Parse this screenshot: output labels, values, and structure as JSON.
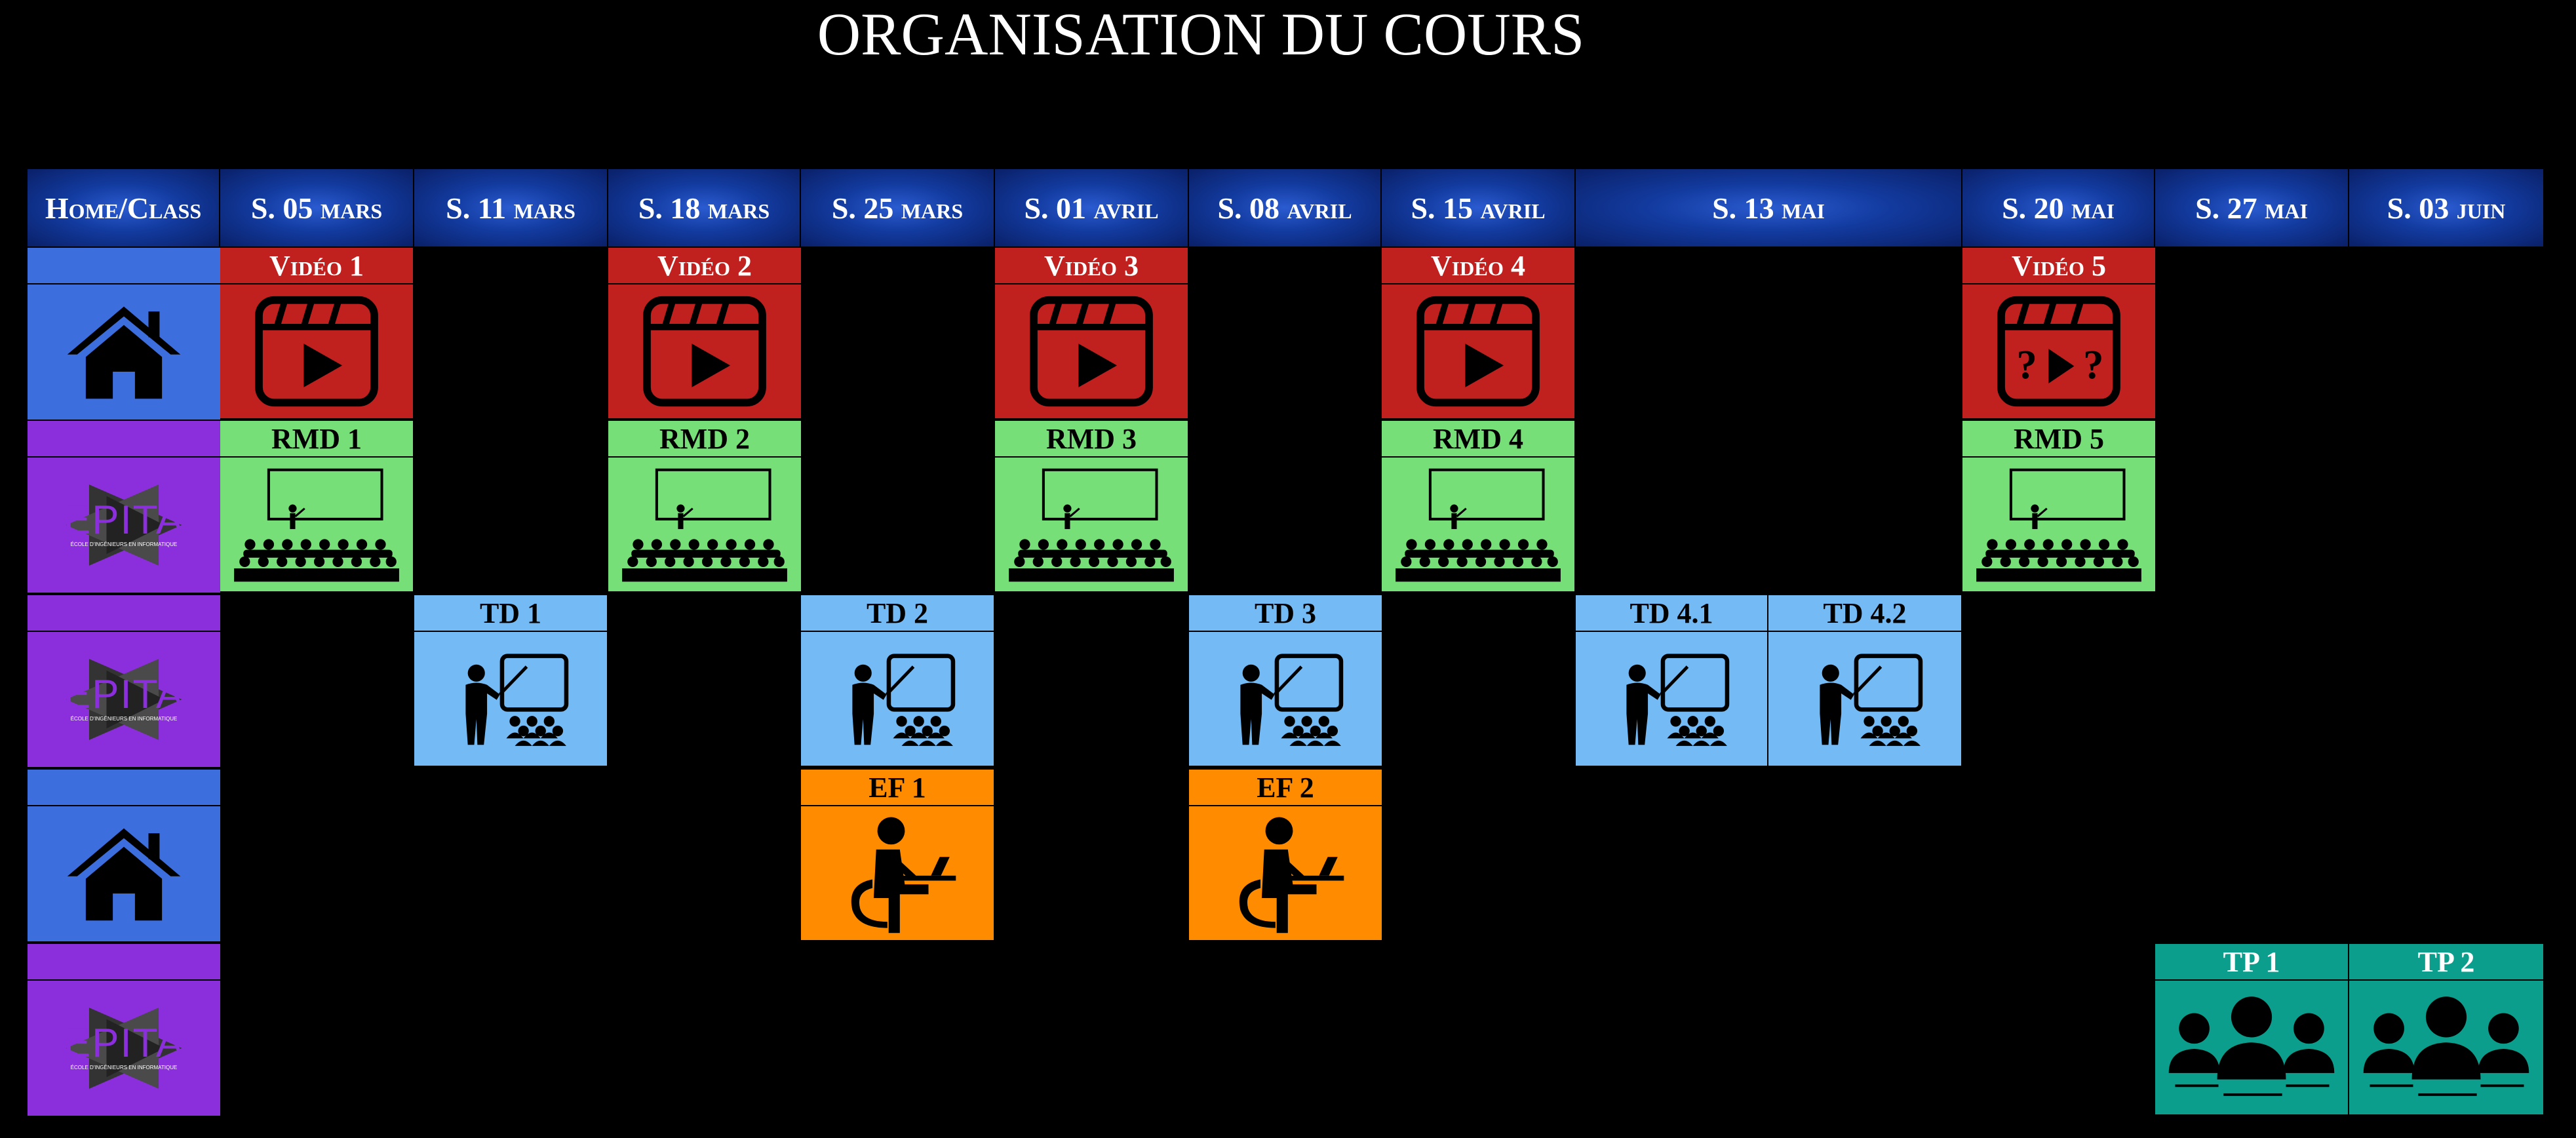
{
  "title": "ORGANISATION DU COURS",
  "headers": [
    "Home/Class",
    "S. 05 mars",
    "S. 11 mars",
    "S. 18 mars",
    "S. 25 mars",
    "S. 01 avril",
    "S. 08 avril",
    "S. 15 avril",
    "S. 13 mai",
    "S. 20 mai",
    "S. 27 mai",
    "S. 03 juin"
  ],
  "rows": [
    {
      "type": "home",
      "icon": "house-icon"
    },
    {
      "type": "epita",
      "icon": "epita-logo",
      "logo_text": "EPITA",
      "logo_subtext": "ÉCOLE D'INGÉNIEURS EN INFORMATIQUE"
    },
    {
      "type": "epita",
      "icon": "epita-logo",
      "logo_text": "EPITA",
      "logo_subtext": "ÉCOLE D'INGÉNIEURS EN INFORMATIQUE"
    },
    {
      "type": "home",
      "icon": "house-icon"
    },
    {
      "type": "epita",
      "icon": "epita-logo",
      "logo_text": "EPITA",
      "logo_subtext": "ÉCOLE D'INGÉNIEURS EN INFORMATIQUE"
    }
  ],
  "sessions": {
    "video1": {
      "label": "Vidéo 1",
      "icon": "video-play-icon"
    },
    "video2": {
      "label": "Vidéo 2",
      "icon": "video-play-icon"
    },
    "video3": {
      "label": "Vidéo 3",
      "icon": "video-play-icon"
    },
    "video4": {
      "label": "Vidéo 4",
      "icon": "video-play-icon"
    },
    "video5": {
      "label": "Vidéo 5",
      "icon": "video-question-icon"
    },
    "rmd1": {
      "label": "RMD 1",
      "icon": "lecture-hall-icon"
    },
    "rmd2": {
      "label": "RMD 2",
      "icon": "lecture-hall-icon"
    },
    "rmd3": {
      "label": "RMD 3",
      "icon": "lecture-hall-icon"
    },
    "rmd4": {
      "label": "RMD 4",
      "icon": "lecture-hall-icon"
    },
    "rmd5": {
      "label": "RMD 5",
      "icon": "lecture-hall-icon"
    },
    "td1": {
      "label": "TD 1",
      "icon": "teacher-board-icon"
    },
    "td2": {
      "label": "TD 2",
      "icon": "teacher-board-icon"
    },
    "td3": {
      "label": "TD 3",
      "icon": "teacher-board-icon"
    },
    "td41": {
      "label": "TD 4.1",
      "icon": "teacher-board-icon"
    },
    "td42": {
      "label": "TD 4.2",
      "icon": "teacher-board-icon"
    },
    "ef1": {
      "label": "EF 1",
      "icon": "student-laptop-icon"
    },
    "ef2": {
      "label": "EF 2",
      "icon": "student-laptop-icon"
    },
    "tp1": {
      "label": "TP 1",
      "icon": "group-icon"
    },
    "tp2": {
      "label": "TP 2",
      "icon": "group-icon"
    }
  },
  "colors": {
    "video": "#c0201e",
    "rmd": "#77df77",
    "td": "#74bbf5",
    "ef": "#ff8c00",
    "tp": "#0b9e8c",
    "home": "#3c6ede",
    "epita": "#8b2fdc",
    "header": "#123a9e"
  }
}
